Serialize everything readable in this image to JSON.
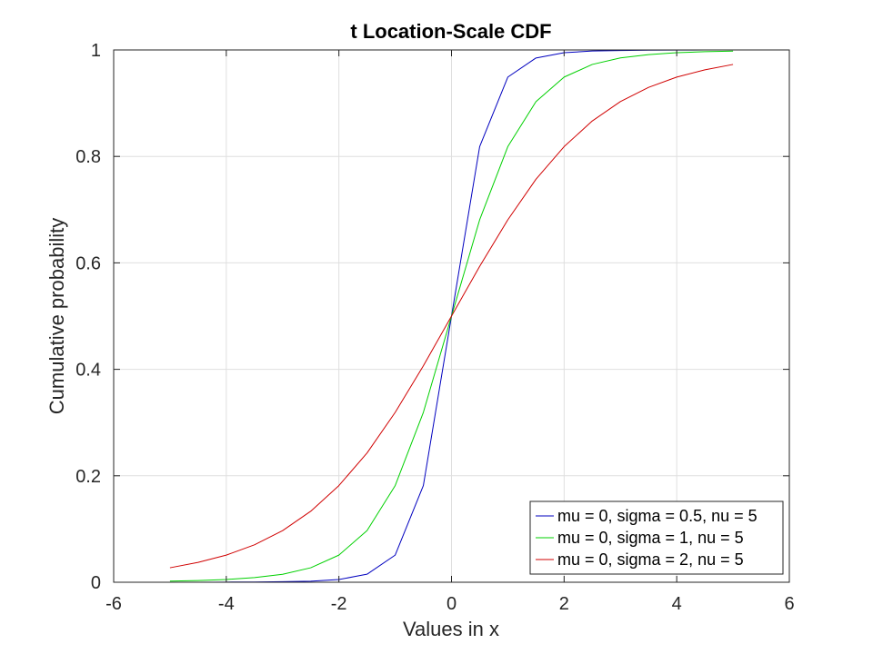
{
  "chart_data": {
    "type": "line",
    "title": "t Location-Scale CDF",
    "xlabel": "Values in x",
    "ylabel": "Cumulative probability",
    "xlim": [
      -6,
      6
    ],
    "ylim": [
      0,
      1
    ],
    "xticks": [
      -6,
      -4,
      -2,
      0,
      2,
      4,
      6
    ],
    "xtick_labels": [
      "-6",
      "-4",
      "-2",
      "0",
      "2",
      "4",
      "6"
    ],
    "yticks": [
      0,
      0.2,
      0.4,
      0.6,
      0.8,
      1
    ],
    "ytick_labels": [
      "0",
      "0.2",
      "0.4",
      "0.6",
      "0.8",
      "1"
    ],
    "grid": true,
    "legend_position": "bottom-right",
    "x": [
      -5,
      -4.5,
      -4,
      -3.5,
      -3,
      -2.5,
      -2,
      -1.5,
      -1,
      -0.5,
      0,
      0.5,
      1,
      1.5,
      2,
      2.5,
      3,
      3.5,
      4,
      4.5,
      5
    ],
    "series": [
      {
        "name": "mu = 0, sigma = 0.5, nu = 5",
        "color": "#0000bf",
        "values": [
          0.0001,
          0.0001,
          0.0003,
          0.0005,
          0.001,
          0.002,
          0.0051,
          0.0151,
          0.051,
          0.1816,
          0.5,
          0.8184,
          0.949,
          0.9849,
          0.9949,
          0.998,
          0.999,
          0.9995,
          0.9997,
          0.9999,
          0.9999
        ]
      },
      {
        "name": "mu = 0, sigma = 1, nu = 5",
        "color": "#00d000",
        "values": [
          0.0021,
          0.0032,
          0.0052,
          0.0087,
          0.015,
          0.0272,
          0.051,
          0.097,
          0.1816,
          0.3191,
          0.5,
          0.6809,
          0.8184,
          0.903,
          0.949,
          0.9728,
          0.985,
          0.9913,
          0.9948,
          0.9968,
          0.9979
        ]
      },
      {
        "name": "mu = 0, sigma = 2, nu = 5",
        "color": "#d00000",
        "values": [
          0.0272,
          0.0373,
          0.051,
          0.0703,
          0.097,
          0.1334,
          0.1816,
          0.2428,
          0.3191,
          0.4066,
          0.5,
          0.5934,
          0.6809,
          0.7572,
          0.8184,
          0.8666,
          0.903,
          0.9297,
          0.949,
          0.9627,
          0.9728
        ]
      }
    ]
  }
}
